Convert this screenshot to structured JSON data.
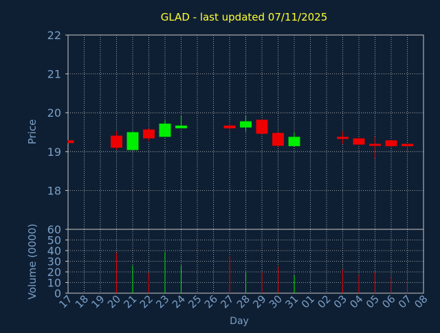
{
  "colors": {
    "background": "#0f1f33",
    "axis_text": "#7aa0c8",
    "title": "#ffff33",
    "grid": "#c8c8c8",
    "up": "#00ee00",
    "down": "#ee0000"
  },
  "chart_data": [
    {
      "type": "candlestick",
      "title": "GLAD - last updated 07/11/2025",
      "ylabel": "Price",
      "ylim": [
        17,
        22
      ],
      "yticks": [
        18,
        19,
        20,
        21,
        22
      ],
      "grid": true,
      "x": [
        "17",
        "18",
        "19",
        "20",
        "21",
        "22",
        "23",
        "24",
        "25",
        "26",
        "27",
        "28",
        "29",
        "30",
        "31",
        "01",
        "02",
        "03",
        "04",
        "05",
        "06",
        "07",
        "08"
      ],
      "candles": [
        {
          "day": "17",
          "open": 19.29,
          "high": 19.29,
          "low": 19.22,
          "close": 19.22,
          "dir": "down"
        },
        {
          "day": "20",
          "open": 19.41,
          "high": 19.52,
          "low": 19.05,
          "close": 19.1,
          "dir": "down"
        },
        {
          "day": "21",
          "open": 19.04,
          "high": 19.52,
          "low": 19.04,
          "close": 19.5,
          "dir": "up"
        },
        {
          "day": "22",
          "open": 19.57,
          "high": 19.6,
          "low": 19.27,
          "close": 19.34,
          "dir": "down"
        },
        {
          "day": "23",
          "open": 19.38,
          "high": 19.8,
          "low": 19.38,
          "close": 19.72,
          "dir": "up"
        },
        {
          "day": "24",
          "open": 19.6,
          "high": 19.92,
          "low": 19.6,
          "close": 19.67,
          "dir": "up"
        },
        {
          "day": "27",
          "open": 19.67,
          "high": 19.72,
          "low": 19.53,
          "close": 19.6,
          "dir": "down"
        },
        {
          "day": "28",
          "open": 19.62,
          "high": 19.92,
          "low": 19.52,
          "close": 19.78,
          "dir": "up"
        },
        {
          "day": "29",
          "open": 19.82,
          "high": 19.82,
          "low": 19.45,
          "close": 19.46,
          "dir": "down"
        },
        {
          "day": "30",
          "open": 19.48,
          "high": 19.5,
          "low": 19.13,
          "close": 19.15,
          "dir": "down"
        },
        {
          "day": "31",
          "open": 19.14,
          "high": 19.48,
          "low": 19.14,
          "close": 19.38,
          "dir": "up"
        },
        {
          "day": "03",
          "open": 19.38,
          "high": 19.52,
          "low": 19.2,
          "close": 19.34,
          "dir": "down"
        },
        {
          "day": "04",
          "open": 19.34,
          "high": 19.36,
          "low": 19.17,
          "close": 19.18,
          "dir": "down"
        },
        {
          "day": "05",
          "open": 19.2,
          "high": 19.38,
          "low": 18.82,
          "close": 19.15,
          "dir": "down"
        },
        {
          "day": "06",
          "open": 19.29,
          "high": 19.29,
          "low": 19.1,
          "close": 19.14,
          "dir": "down"
        },
        {
          "day": "07",
          "open": 19.2,
          "high": 19.2,
          "low": 18.95,
          "close": 19.14,
          "dir": "down"
        }
      ]
    },
    {
      "type": "bar",
      "xlabel": "Day",
      "ylabel": "Volume (0000)",
      "ylim": [
        0,
        60
      ],
      "yticks": [
        0,
        10,
        20,
        30,
        40,
        50,
        60
      ],
      "grid": true,
      "categories": [
        "17",
        "18",
        "19",
        "20",
        "21",
        "22",
        "23",
        "24",
        "25",
        "26",
        "27",
        "28",
        "29",
        "30",
        "31",
        "01",
        "02",
        "03",
        "04",
        "05",
        "06",
        "07",
        "08"
      ],
      "bars": [
        {
          "day": "17",
          "value": 0,
          "dir": "down"
        },
        {
          "day": "20",
          "value": 38,
          "dir": "down"
        },
        {
          "day": "21",
          "value": 26,
          "dir": "up"
        },
        {
          "day": "22",
          "value": 19,
          "dir": "down"
        },
        {
          "day": "23",
          "value": 39,
          "dir": "up"
        },
        {
          "day": "24",
          "value": 26,
          "dir": "up"
        },
        {
          "day": "27",
          "value": 35,
          "dir": "down"
        },
        {
          "day": "28",
          "value": 20,
          "dir": "up"
        },
        {
          "day": "29",
          "value": 20,
          "dir": "down"
        },
        {
          "day": "30",
          "value": 25,
          "dir": "down"
        },
        {
          "day": "31",
          "value": 17,
          "dir": "up"
        },
        {
          "day": "03",
          "value": 22,
          "dir": "down"
        },
        {
          "day": "04",
          "value": 17,
          "dir": "down"
        },
        {
          "day": "05",
          "value": 20,
          "dir": "down"
        },
        {
          "day": "06",
          "value": 15,
          "dir": "down"
        },
        {
          "day": "07",
          "value": 12,
          "dir": "down"
        }
      ]
    }
  ]
}
